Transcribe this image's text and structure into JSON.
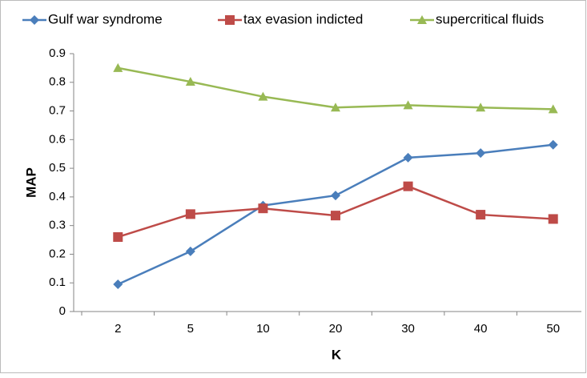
{
  "chart_data": {
    "type": "line",
    "categories": [
      "2",
      "5",
      "10",
      "20",
      "30",
      "40",
      "50"
    ],
    "series": [
      {
        "name": "Gulf war syndrome",
        "color": "#4a7ebb",
        "marker": "diamond",
        "values": [
          0.095,
          0.21,
          0.37,
          0.405,
          0.537,
          0.553,
          0.582
        ]
      },
      {
        "name": "tax evasion indicted",
        "color": "#be4b48",
        "marker": "square",
        "values": [
          0.26,
          0.34,
          0.36,
          0.335,
          0.437,
          0.338,
          0.323
        ]
      },
      {
        "name": "supercritical fluids",
        "color": "#98b954",
        "marker": "triangle",
        "values": [
          0.85,
          0.802,
          0.75,
          0.712,
          0.72,
          0.712,
          0.706
        ]
      }
    ],
    "xlabel": "K",
    "ylabel": "MAP",
    "ylim": [
      0,
      0.9
    ],
    "yticks": [
      0,
      0.1,
      0.2,
      0.3,
      0.4,
      0.5,
      0.6,
      0.7,
      0.8,
      0.9
    ],
    "grid": false,
    "legend": "top"
  }
}
